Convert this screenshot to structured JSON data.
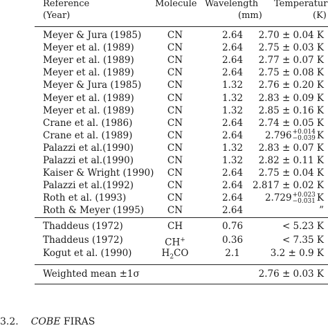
{
  "headers": {
    "reference": "Reference",
    "year": "(Year)",
    "molecule": "Molecule",
    "wavelength": "Wavelength",
    "wavelength_unit": "(mm)",
    "temperature": "Temperature",
    "temperature_unit": "(K)"
  },
  "group1": [
    {
      "ref": "Meyer & Jura (1985)",
      "mol": "CN",
      "wav": "2.64",
      "temp": "2.70 ± 0.04 K"
    },
    {
      "ref": "Meyer et al. (1989)",
      "mol": "CN",
      "wav": "2.64",
      "temp": "2.75 ± 0.03 K"
    },
    {
      "ref": "Meyer et al. (1989)",
      "mol": "CN",
      "wav": "2.64",
      "temp": "2.77 ± 0.07 K"
    },
    {
      "ref": "Meyer et al. (1989)",
      "mol": "CN",
      "wav": "2.64",
      "temp": "2.75 ± 0.08 K"
    },
    {
      "ref": "Meyer & Jura (1985)",
      "mol": "CN",
      "wav": "1.32",
      "temp": "2.76 ± 0.20 K"
    },
    {
      "ref": "Meyer et al. (1989)",
      "mol": "CN",
      "wav": "1.32",
      "temp": "2.83 ± 0.09 K"
    },
    {
      "ref": "Meyer et al. (1989)",
      "mol": "CN",
      "wav": "1.32",
      "temp": "2.85 ± 0.16 K"
    },
    {
      "ref": "Crane et al. (1986)",
      "mol": "CN",
      "wav": "2.64",
      "temp": "2.74 ± 0.05 K"
    },
    {
      "ref": "Crane et al. (1989)",
      "mol": "CN",
      "wav": "2.64",
      "temp_base": "2.796",
      "temp_sup": "+0.014",
      "temp_sub": "−0.039",
      "temp_unit": "K"
    },
    {
      "ref": "Palazzi et al.(1990)",
      "mol": "CN",
      "wav": "1.32",
      "temp": "2.83 ± 0.07 K"
    },
    {
      "ref": "Palazzi et al.(1990)",
      "mol": "CN",
      "wav": "1.32",
      "temp": "2.82 ± 0.11 K"
    },
    {
      "ref": "Kaiser & Wright (1990)",
      "mol": "CN",
      "wav": "2.64",
      "temp": "2.75 ± 0.04 K"
    },
    {
      "ref": "Palazzi et al.(1992)",
      "mol": "CN",
      "wav": "2.64",
      "temp": "2.817 ± 0.02 K"
    },
    {
      "ref": "Roth et al. (1993)",
      "mol": "CN",
      "wav": "2.64",
      "temp_base": "2.729",
      "temp_sup": "+0.023",
      "temp_sub": "−0.031",
      "temp_unit": "K"
    },
    {
      "ref": "Roth & Meyer (1995)",
      "mol": "CN",
      "wav": "2.64",
      "temp": "”"
    }
  ],
  "group2": [
    {
      "ref": "Thaddeus (1972)",
      "mol_base": "CH",
      "wav": "0.76",
      "temp": "< 5.23 K"
    },
    {
      "ref": "Thaddeus (1972)",
      "mol_base": "CH",
      "mol_sup": "+",
      "wav": "0.36",
      "temp": "< 7.35 K"
    },
    {
      "ref": "Kogut et al. (1990)",
      "mol_base": "H",
      "mol_sub": "2",
      "mol_tail": "CO",
      "wav": "2.1",
      "temp": "3.2 ± 0.9 K"
    }
  ],
  "weighted": {
    "label": "Weighted mean ±1σ",
    "temp": "2.76 ± 0.03 K"
  },
  "section": {
    "number": "3.2.",
    "title_italic": "COBE",
    "title_rest": " FIRAS"
  }
}
